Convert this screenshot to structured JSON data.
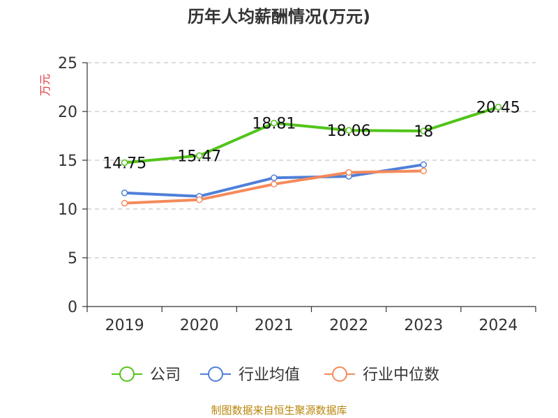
{
  "chart_data": {
    "type": "line",
    "title": "历年人均薪酬情况(万元)",
    "ylabel": "万元",
    "xlabel": "",
    "ylim": [
      0,
      25
    ],
    "yticks": [
      0,
      5,
      10,
      15,
      20,
      25
    ],
    "categories": [
      "2019",
      "2020",
      "2021",
      "2022",
      "2023",
      "2024"
    ],
    "grid": true,
    "legend_position": "bottom",
    "series": [
      {
        "name": "公司",
        "color": "#52c41a",
        "values": [
          14.75,
          15.47,
          18.81,
          18.06,
          18,
          20.45
        ],
        "labels": [
          "14.75",
          "15.47",
          "18.81",
          "18.06",
          "18",
          "20.45"
        ]
      },
      {
        "name": "行业均值",
        "color": "#4f7fd9",
        "values": [
          11.65,
          11.3,
          13.2,
          13.35,
          14.55,
          null
        ],
        "labels": null
      },
      {
        "name": "行业中位数",
        "color": "#f58a5b",
        "values": [
          10.6,
          10.95,
          12.55,
          13.75,
          13.9,
          null
        ],
        "labels": null
      }
    ],
    "source": "制图数据来自恒生聚源数据库"
  }
}
